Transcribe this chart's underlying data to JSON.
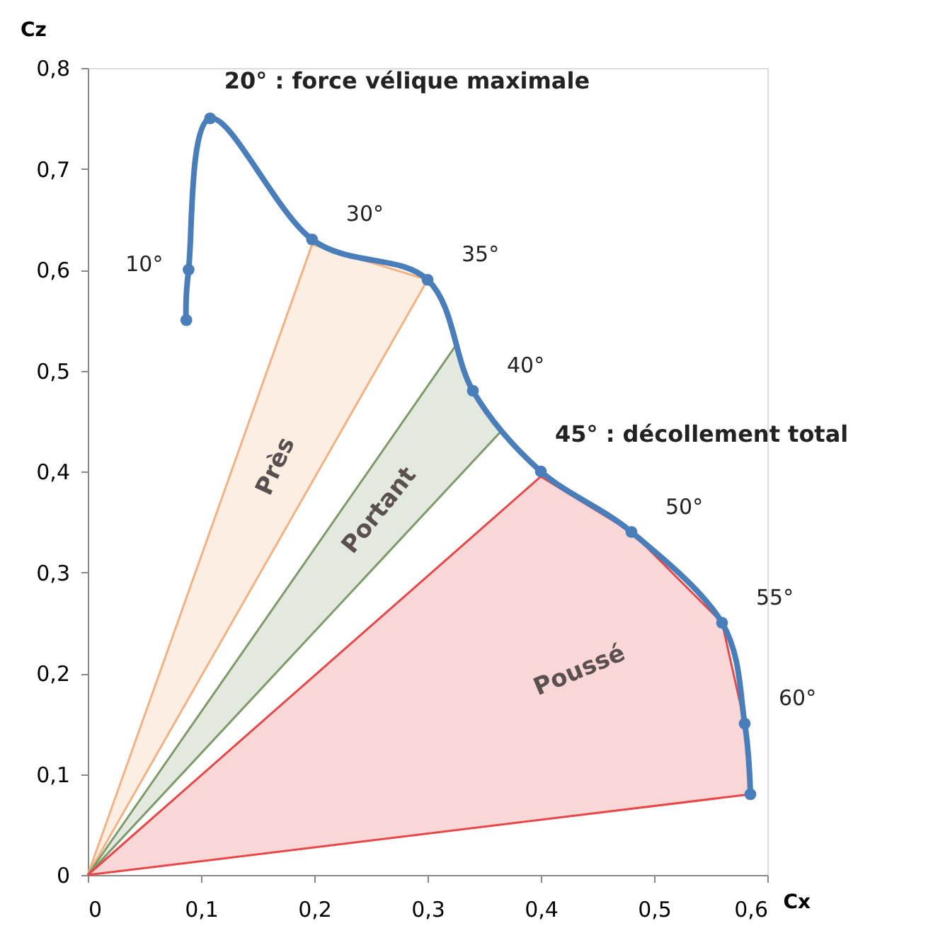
{
  "chart_data": {
    "type": "line",
    "xlabel": "Cx",
    "ylabel": "Cz",
    "xlim": [
      0,
      0.6
    ],
    "ylim": [
      0,
      0.8
    ],
    "xticks": [
      0,
      {
        "value": 0.1,
        "label": "0,1"
      },
      {
        "value": 0.2,
        "label": "0,2"
      },
      {
        "value": 0.3,
        "label": "0,3"
      },
      {
        "value": 0.4,
        "label": "0,4"
      },
      {
        "value": 0.5,
        "label": "0,5"
      },
      {
        "value": 0.6,
        "label": "0,6"
      }
    ],
    "yticks": [
      0,
      {
        "value": 0.1,
        "label": "0,1"
      },
      {
        "value": 0.2,
        "label": "0,2"
      },
      {
        "value": 0.3,
        "label": "0,3"
      },
      {
        "value": 0.4,
        "label": "0,4"
      },
      {
        "value": 0.5,
        "label": "0,5"
      },
      {
        "value": 0.6,
        "label": "0,6"
      },
      {
        "value": 0.7,
        "label": "0,7"
      },
      {
        "value": 0.8,
        "label": "0,8"
      }
    ],
    "grid": false,
    "marker": "circle",
    "line_style": "solid",
    "series": [
      {
        "name": "Près",
        "type": "area",
        "marker": "none",
        "color": "#f4b183",
        "x": [
          0,
          0.198,
          0.3,
          0
        ],
        "values": [
          0,
          0.625,
          0.59,
          0
        ]
      },
      {
        "name": "Portant",
        "type": "area",
        "marker": "none",
        "color": "#7f9a6a",
        "x": [
          0,
          0.325,
          0.34,
          0.365,
          0
        ],
        "values": [
          0,
          0.525,
          0.48,
          0.44,
          0
        ]
      },
      {
        "name": "Poussé",
        "type": "area",
        "marker": "none",
        "color": "#e8474a",
        "x": [
          0,
          0.4,
          0.48,
          0.56,
          0.58,
          0.585,
          0
        ],
        "values": [
          0,
          0.395,
          0.34,
          0.25,
          0.15,
          0.08,
          0
        ]
      },
      {
        "type": "line",
        "color": "#4a7ebb",
        "x": [
          0.087,
          0.089,
          0.108,
          0.198,
          0.3,
          0.34,
          0.4,
          0.48,
          0.56,
          0.58,
          0.585
        ],
        "values": [
          0.55,
          0.6,
          0.75,
          0.63,
          0.59,
          0.48,
          0.4,
          0.34,
          0.25,
          0.15,
          0.08
        ]
      }
    ],
    "annotations": [
      {
        "text": "10°",
        "x": 0.089,
        "y": 0.6
      },
      {
        "text": "20° : force vélique maximale",
        "x": 0.108,
        "y": 0.75
      },
      {
        "text": "30°",
        "x": 0.198,
        "y": 0.63
      },
      {
        "text": "35°",
        "x": 0.3,
        "y": 0.59
      },
      {
        "text": "40°",
        "x": 0.34,
        "y": 0.48
      },
      {
        "text": "45° : décollement total",
        "x": 0.4,
        "y": 0.4
      },
      {
        "text": "50°",
        "x": 0.48,
        "y": 0.34
      },
      {
        "text": "55°",
        "x": 0.56,
        "y": 0.25
      },
      {
        "text": "60°",
        "x": 0.58,
        "y": 0.15
      }
    ]
  }
}
